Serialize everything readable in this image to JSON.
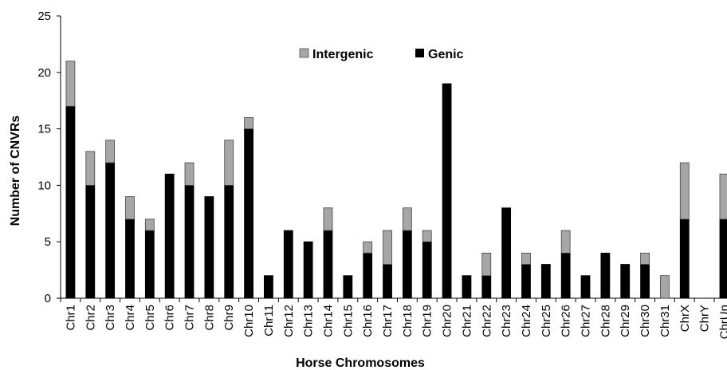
{
  "chart_data": {
    "type": "bar",
    "stacked": true,
    "title": "",
    "xlabel": "Horse Chromosomes",
    "ylabel": "Number of CNVRs",
    "ylim": [
      0,
      25
    ],
    "yticks": [
      0,
      5,
      10,
      15,
      20,
      25
    ],
    "grid": false,
    "legend_position": "top-center",
    "categories": [
      "Chr1",
      "Chr2",
      "Chr3",
      "Chr4",
      "Chr5",
      "Chr6",
      "Chr7",
      "Chr8",
      "Chr9",
      "Chr10",
      "Chr11",
      "Chr12",
      "Chr13",
      "Chr14",
      "Chr15",
      "Chr16",
      "Chr17",
      "Chr18",
      "Chr19",
      "Chr20",
      "Chr21",
      "Chr22",
      "Chr23",
      "Chr24",
      "Chr25",
      "Chr26",
      "Chr27",
      "Chr28",
      "Chr29",
      "Chr30",
      "Chr31",
      "ChrX",
      "ChrY",
      "ChrUn"
    ],
    "series": [
      {
        "name": "Genic",
        "color": "#000000",
        "values": [
          17,
          10,
          12,
          7,
          6,
          11,
          10,
          9,
          10,
          15,
          2,
          6,
          5,
          6,
          2,
          4,
          3,
          6,
          5,
          19,
          2,
          2,
          8,
          3,
          3,
          4,
          2,
          4,
          3,
          3,
          0,
          7,
          0,
          7
        ]
      },
      {
        "name": "Intergenic",
        "color": "#a6a6a6",
        "values": [
          4,
          3,
          2,
          2,
          1,
          0,
          2,
          0,
          4,
          1,
          0,
          0,
          0,
          2,
          0,
          1,
          3,
          2,
          1,
          0,
          0,
          2,
          0,
          1,
          0,
          2,
          0,
          0,
          0,
          1,
          2,
          5,
          0,
          4
        ]
      }
    ]
  }
}
